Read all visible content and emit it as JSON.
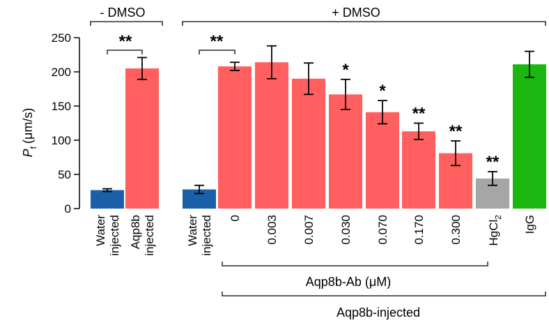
{
  "chart_data": {
    "type": "bar",
    "ylabel_main": "P",
    "ylabel_sub": "f",
    "ylabel_unit": "(μm/s)",
    "ylim": [
      0,
      250
    ],
    "yticks": [
      "0",
      "50",
      "100",
      "150",
      "200",
      "250"
    ],
    "group_labels": {
      "minus_dmso": "- DMSO",
      "plus_dmso": "+ DMSO",
      "antibody": "Aqp8b-Ab (μM)",
      "injected": "Aqp8b-injected"
    },
    "categories": [
      {
        "label": [
          "Water",
          "injected"
        ],
        "value": 27,
        "error": 2,
        "sig": "",
        "color": "#1a5fa8"
      },
      {
        "label": [
          "Aqp8b",
          "injected"
        ],
        "value": 205,
        "error": 16,
        "sig": "",
        "color": "#ff5f5f"
      },
      {
        "label": [
          "Water",
          "injected"
        ],
        "value": 28,
        "error": 6,
        "sig": "",
        "color": "#1a5fa8"
      },
      {
        "label": [
          "0"
        ],
        "value": 208,
        "error": 6,
        "sig": "",
        "color": "#ff5f5f"
      },
      {
        "label": [
          "0.003"
        ],
        "value": 214,
        "error": 24,
        "sig": "",
        "color": "#ff5f5f"
      },
      {
        "label": [
          "0.007"
        ],
        "value": 190,
        "error": 23,
        "sig": "",
        "color": "#ff5f5f"
      },
      {
        "label": [
          "0.030"
        ],
        "value": 167,
        "error": 22,
        "sig": "*",
        "color": "#ff5f5f"
      },
      {
        "label": [
          "0.070"
        ],
        "value": 141,
        "error": 17,
        "sig": "*",
        "color": "#ff5f5f"
      },
      {
        "label": [
          "0.170"
        ],
        "value": 113,
        "error": 12,
        "sig": "**",
        "color": "#ff5f5f"
      },
      {
        "label": [
          "0.300"
        ],
        "value": 81,
        "error": 18,
        "sig": "**",
        "color": "#ff5f5f"
      },
      {
        "label": [
          "HgCl",
          "2"
        ],
        "value": 44,
        "error": 10,
        "sig": "**",
        "color": "#a6a6a6"
      },
      {
        "label": [
          "IgG"
        ],
        "value": 211,
        "error": 19,
        "sig": "",
        "color": "#1bb60f"
      }
    ],
    "comparisons": [
      {
        "label": "**"
      },
      {
        "label": "**"
      }
    ]
  }
}
